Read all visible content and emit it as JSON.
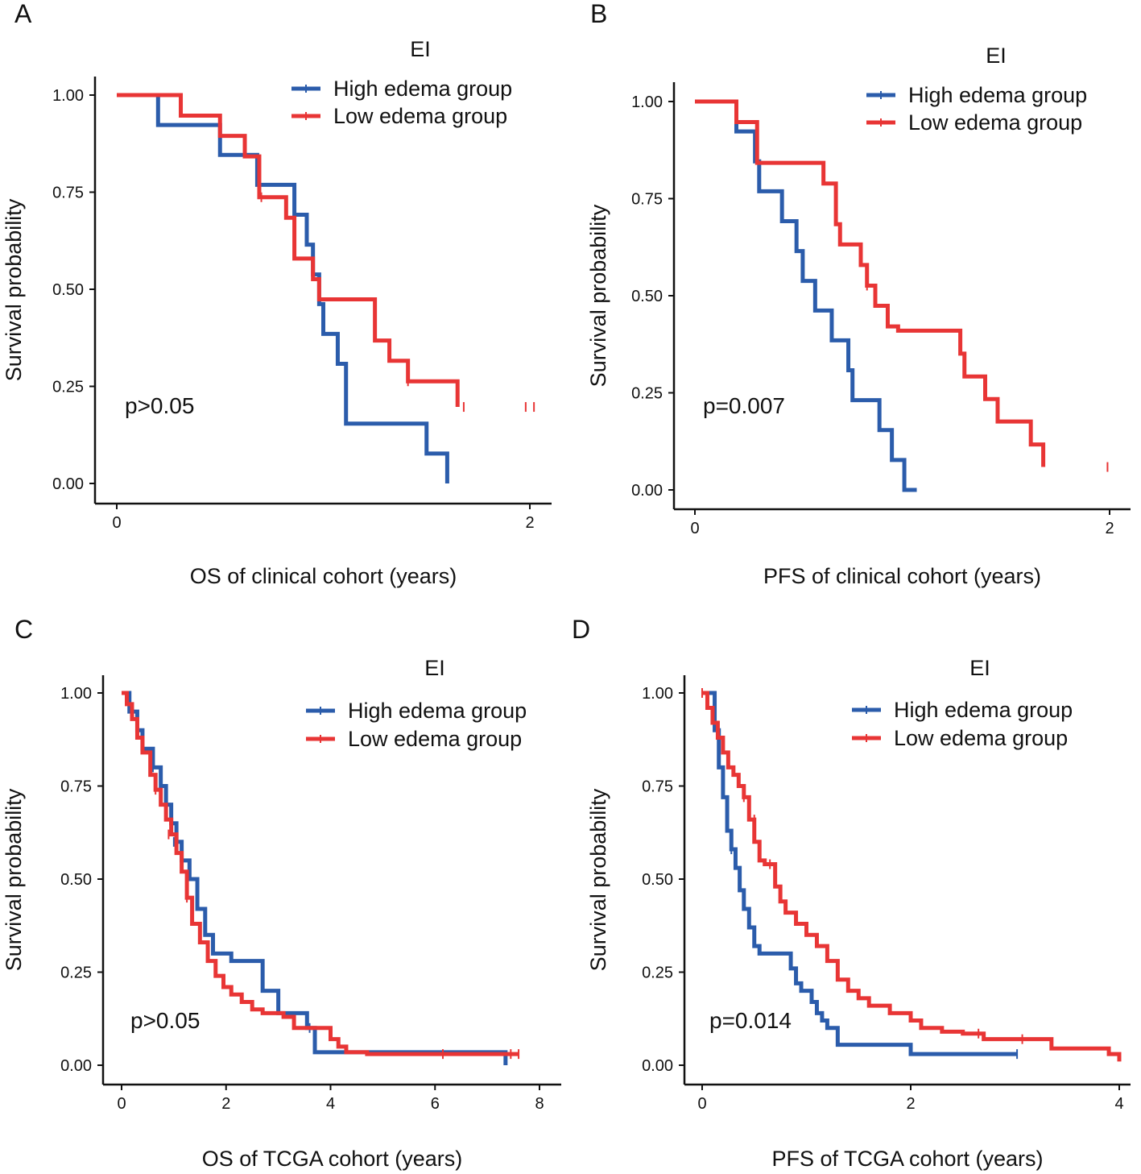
{
  "chart_data": [
    {
      "type": "line",
      "subtype": "kaplan-meier",
      "panel_label": "A",
      "legend_title": "EI",
      "xlabel": "OS of clinical cohort (years)",
      "ylabel": "Survival probability",
      "xlim": [
        -0.05,
        2.1
      ],
      "ylim": [
        -0.05,
        1.05
      ],
      "xticks": [
        0,
        2
      ],
      "yticks": [
        0,
        0.25,
        0.5,
        0.75,
        1
      ],
      "ytick_labels": [
        "0.00",
        "0.25",
        "0.50",
        "0.75",
        "1.00"
      ],
      "annotation": "p>0.05",
      "annotation_pos": {
        "x": 0.05,
        "y": 0.2
      },
      "series": [
        {
          "name": "High edema group",
          "color": "#2b5cab",
          "x": [
            0,
            0.2,
            0.5,
            0.68,
            0.86,
            0.92,
            0.95,
            0.98,
            1.0,
            1.07,
            1.11,
            1.5,
            1.6
          ],
          "y": [
            1.0,
            0.923,
            0.846,
            0.769,
            0.692,
            0.615,
            0.538,
            0.462,
            0.385,
            0.308,
            0.154,
            0.077,
            0.0
          ],
          "censor_x": [],
          "censor_y": []
        },
        {
          "name": "Low edema group",
          "color": "#e83535",
          "x": [
            0,
            0.31,
            0.5,
            0.62,
            0.69,
            0.82,
            0.86,
            0.95,
            0.98,
            1.25,
            1.32,
            1.41,
            1.65
          ],
          "y": [
            1.0,
            0.947,
            0.895,
            0.842,
            0.737,
            0.684,
            0.579,
            0.526,
            0.474,
            0.368,
            0.316,
            0.263,
            0.197
          ],
          "censor_x": [
            0.7,
            1.41,
            1.68,
            1.98,
            2.02
          ],
          "censor_y": [
            0.737,
            0.263,
            0.197,
            0.197,
            0.197
          ]
        }
      ]
    },
    {
      "type": "line",
      "subtype": "kaplan-meier",
      "panel_label": "B",
      "legend_title": "EI",
      "xlabel": "PFS of clinical cohort (years)",
      "ylabel": "Survival probability",
      "xlim": [
        -0.05,
        2.1
      ],
      "ylim": [
        -0.05,
        1.05
      ],
      "xticks": [
        0,
        2
      ],
      "yticks": [
        0,
        0.25,
        0.5,
        0.75,
        1
      ],
      "ytick_labels": [
        "0.00",
        "0.25",
        "0.50",
        "0.75",
        "1.00"
      ],
      "annotation": "p=0.007",
      "annotation_pos": {
        "x": 0.04,
        "y": 0.2
      },
      "series": [
        {
          "name": "High edema group",
          "color": "#2b5cab",
          "x": [
            0,
            0.2,
            0.29,
            0.31,
            0.42,
            0.49,
            0.52,
            0.58,
            0.66,
            0.74,
            0.76,
            0.89,
            0.95,
            1.01,
            1.07
          ],
          "y": [
            1.0,
            0.923,
            0.846,
            0.769,
            0.692,
            0.615,
            0.538,
            0.462,
            0.385,
            0.308,
            0.231,
            0.154,
            0.077,
            0.0,
            0.0
          ],
          "censor_x": [],
          "censor_y": []
        },
        {
          "name": "Low edema group",
          "color": "#e83535",
          "x": [
            0,
            0.2,
            0.3,
            0.62,
            0.68,
            0.7,
            0.8,
            0.83,
            0.87,
            0.93,
            0.98,
            1.28,
            1.3,
            1.4,
            1.46,
            1.62,
            1.68
          ],
          "y": [
            1.0,
            0.947,
            0.842,
            0.789,
            0.684,
            0.632,
            0.579,
            0.526,
            0.474,
            0.421,
            0.41,
            0.351,
            0.292,
            0.234,
            0.176,
            0.117,
            0.059
          ],
          "censor_x": [
            0.83,
            1.99
          ],
          "censor_y": [
            0.526,
            0.059
          ]
        }
      ]
    },
    {
      "type": "line",
      "subtype": "kaplan-meier",
      "panel_label": "C",
      "legend_title": "EI",
      "xlabel": "OS of TCGA cohort (years)",
      "ylabel": "Survival probability",
      "xlim": [
        -0.35,
        8.4
      ],
      "ylim": [
        -0.05,
        1.05
      ],
      "xticks": [
        0,
        2,
        4,
        6,
        8
      ],
      "yticks": [
        0,
        0.25,
        0.5,
        0.75,
        1
      ],
      "ytick_labels": [
        "0.00",
        "0.25",
        "0.50",
        "0.75",
        "1.00"
      ],
      "annotation": "p>0.05",
      "annotation_pos": {
        "x": 0.18,
        "y": 0.12
      },
      "series": [
        {
          "name": "High edema group",
          "color": "#2b5cab",
          "x": [
            0,
            0.15,
            0.3,
            0.4,
            0.6,
            0.75,
            0.85,
            0.95,
            1.05,
            1.15,
            1.3,
            1.45,
            1.6,
            1.75,
            2.1,
            2.7,
            3.0,
            3.55,
            3.7,
            7.35
          ],
          "y": [
            1.0,
            0.95,
            0.9,
            0.85,
            0.8,
            0.75,
            0.7,
            0.65,
            0.6,
            0.55,
            0.5,
            0.42,
            0.35,
            0.3,
            0.28,
            0.2,
            0.14,
            0.1,
            0.035,
            0.0
          ],
          "censor_x": [
            0.6,
            1.0,
            3.6
          ],
          "censor_y": [
            0.8,
            0.6,
            0.1
          ],
          "tail_x": 7.35,
          "tail_drop_y": 0.0
        },
        {
          "name": "Low edema group",
          "color": "#e83535",
          "x": [
            0,
            0.1,
            0.2,
            0.3,
            0.4,
            0.55,
            0.65,
            0.75,
            0.85,
            0.95,
            1.05,
            1.15,
            1.25,
            1.35,
            1.5,
            1.65,
            1.8,
            1.95,
            2.1,
            2.3,
            2.5,
            2.7,
            3.1,
            3.3,
            4.0,
            4.15,
            4.3,
            4.7,
            7.6
          ],
          "y": [
            1.0,
            0.97,
            0.93,
            0.88,
            0.84,
            0.78,
            0.74,
            0.7,
            0.66,
            0.62,
            0.57,
            0.52,
            0.45,
            0.38,
            0.33,
            0.28,
            0.24,
            0.21,
            0.19,
            0.17,
            0.15,
            0.14,
            0.13,
            0.1,
            0.07,
            0.05,
            0.035,
            0.03,
            0.03
          ],
          "censor_x": [
            0.65,
            0.9,
            1.25,
            6.15,
            7.45,
            7.6
          ],
          "censor_y": [
            0.74,
            0.62,
            0.45,
            0.03,
            0.03,
            0.03
          ]
        }
      ]
    },
    {
      "type": "line",
      "subtype": "kaplan-meier",
      "panel_label": "D",
      "legend_title": "EI",
      "xlabel": "PFS of TCGA cohort (years)",
      "ylabel": "Survival probability",
      "xlim": [
        -0.1,
        4.2
      ],
      "ylim": [
        -0.05,
        1.05
      ],
      "xticks": [
        0,
        2,
        4
      ],
      "yticks": [
        0,
        0.25,
        0.5,
        0.75,
        1
      ],
      "ytick_labels": [
        "0.00",
        "0.25",
        "0.50",
        "0.75",
        "1.00"
      ],
      "annotation": "p=0.014",
      "annotation_pos": {
        "x": 0.02,
        "y": 0.12
      },
      "series": [
        {
          "name": "High edema group",
          "color": "#2b5cab",
          "x": [
            0,
            0.12,
            0.16,
            0.2,
            0.24,
            0.28,
            0.32,
            0.36,
            0.4,
            0.45,
            0.5,
            0.55,
            0.6,
            0.65,
            0.7,
            0.85,
            0.9,
            0.95,
            1.05,
            1.1,
            1.15,
            1.2,
            1.3,
            2.0,
            3.02
          ],
          "y": [
            1.0,
            0.9,
            0.8,
            0.72,
            0.63,
            0.58,
            0.53,
            0.47,
            0.42,
            0.37,
            0.32,
            0.3,
            0.3,
            0.3,
            0.3,
            0.26,
            0.22,
            0.2,
            0.17,
            0.14,
            0.12,
            0.1,
            0.055,
            0.03,
            0.03
          ],
          "censor_x": [
            0.28,
            3.02
          ],
          "censor_y": [
            0.58,
            0.03
          ]
        },
        {
          "name": "Low edema group",
          "color": "#e83535",
          "x": [
            0,
            0.05,
            0.1,
            0.15,
            0.2,
            0.25,
            0.3,
            0.35,
            0.4,
            0.45,
            0.5,
            0.55,
            0.6,
            0.7,
            0.75,
            0.8,
            0.9,
            1.0,
            1.1,
            1.2,
            1.3,
            1.4,
            1.5,
            1.6,
            1.8,
            2.0,
            2.1,
            2.3,
            2.5,
            2.7,
            3.0,
            3.35,
            3.9,
            4.0
          ],
          "y": [
            1.0,
            0.96,
            0.92,
            0.88,
            0.84,
            0.8,
            0.78,
            0.75,
            0.72,
            0.66,
            0.6,
            0.55,
            0.54,
            0.48,
            0.44,
            0.41,
            0.38,
            0.35,
            0.32,
            0.28,
            0.23,
            0.2,
            0.18,
            0.16,
            0.14,
            0.12,
            0.1,
            0.09,
            0.085,
            0.07,
            0.07,
            0.045,
            0.03,
            0.01
          ],
          "censor_x": [
            0.0,
            0.4,
            0.5,
            0.65,
            2.65,
            3.07
          ],
          "censor_y": [
            1.0,
            0.72,
            0.66,
            0.54,
            0.085,
            0.07
          ]
        }
      ]
    }
  ]
}
